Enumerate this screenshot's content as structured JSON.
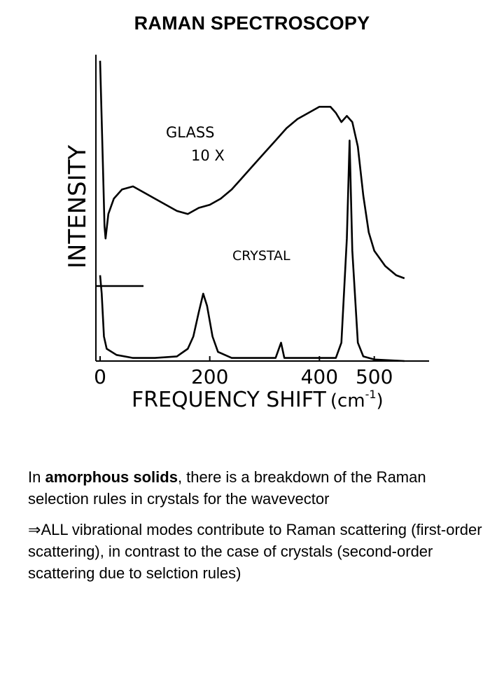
{
  "title": "RAMAN SPECTROSCOPY",
  "chart_data": {
    "type": "line",
    "xlabel_main": "FREQUENCY SHIFT",
    "xlabel_unit": "(cm",
    "xlabel_unit_sup": "-1",
    "xlabel_unit_close": ")",
    "ylabel": "INTENSITY",
    "x_ticks": [
      {
        "value": 0,
        "label": "0"
      },
      {
        "value": 200,
        "label": "200"
      },
      {
        "value": 400,
        "label": "400"
      },
      {
        "value": 500,
        "label": "500"
      }
    ],
    "xlim": [
      0,
      600
    ],
    "ylim": [
      0,
      100
    ],
    "annotations": {
      "glass_label": "GLASS",
      "glass_factor": "10 X",
      "crystal_label": "CRYSTAL"
    },
    "grid": false,
    "series": [
      {
        "name": "GLASS",
        "scale": "10X",
        "color": "#000000",
        "points": [
          [
            0,
            98
          ],
          [
            5,
            65
          ],
          [
            8,
            44
          ],
          [
            10,
            40
          ],
          [
            15,
            48
          ],
          [
            25,
            53
          ],
          [
            40,
            56
          ],
          [
            60,
            57
          ],
          [
            80,
            55
          ],
          [
            100,
            53
          ],
          [
            120,
            51
          ],
          [
            140,
            49
          ],
          [
            160,
            48
          ],
          [
            180,
            50
          ],
          [
            200,
            51
          ],
          [
            220,
            53
          ],
          [
            240,
            56
          ],
          [
            260,
            60
          ],
          [
            280,
            64
          ],
          [
            300,
            68
          ],
          [
            320,
            72
          ],
          [
            340,
            76
          ],
          [
            360,
            79
          ],
          [
            380,
            81
          ],
          [
            400,
            83
          ],
          [
            420,
            83
          ],
          [
            430,
            81
          ],
          [
            440,
            78
          ],
          [
            450,
            80
          ],
          [
            460,
            78
          ],
          [
            470,
            70
          ],
          [
            480,
            54
          ],
          [
            490,
            42
          ],
          [
            500,
            36
          ],
          [
            520,
            31
          ],
          [
            540,
            28
          ],
          [
            555,
            27
          ]
        ]
      },
      {
        "name": "CRYSTAL",
        "color": "#000000",
        "points": [
          [
            0,
            28
          ],
          [
            3,
            22
          ],
          [
            7,
            8
          ],
          [
            12,
            4
          ],
          [
            30,
            2
          ],
          [
            60,
            1
          ],
          [
            100,
            1
          ],
          [
            140,
            1.5
          ],
          [
            160,
            4
          ],
          [
            170,
            8
          ],
          [
            180,
            16
          ],
          [
            188,
            22
          ],
          [
            195,
            18
          ],
          [
            205,
            8
          ],
          [
            215,
            3
          ],
          [
            240,
            1
          ],
          [
            300,
            1
          ],
          [
            320,
            1
          ],
          [
            330,
            6
          ],
          [
            336,
            1
          ],
          [
            350,
            1
          ],
          [
            400,
            1
          ],
          [
            430,
            1
          ],
          [
            440,
            6
          ],
          [
            450,
            40
          ],
          [
            455,
            72
          ],
          [
            460,
            36
          ],
          [
            470,
            6
          ],
          [
            480,
            1.5
          ],
          [
            500,
            0.5
          ],
          [
            555,
            0
          ]
        ]
      }
    ]
  },
  "text": {
    "p1_prefix": "In ",
    "p1_bold": "amorphous solids",
    "p1_rest": ", there is a breakdown of the Raman selection rules in crystals for the wavevector",
    "p2_arrow": "⇒",
    "p2_text": "ALL vibrational modes contribute to Raman scattering  (first-order scattering), in contrast to the case of crystals (second-order scattering due to selction rules)"
  }
}
